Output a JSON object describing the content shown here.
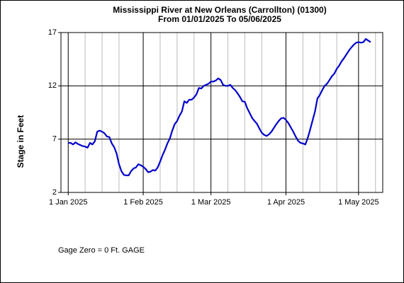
{
  "chart_data": {
    "type": "line",
    "title": "Mississippi River at New Orleans (Carrollton) (01300)",
    "subtitle": "From 01/01/2025 To 05/06/2025",
    "y_label": "Stage in Feet",
    "annotation": "Gage Zero = 0 Ft. GAGE",
    "x": [
      "2025-01-01",
      "2025-01-02",
      "2025-01-03",
      "2025-01-04",
      "2025-01-05",
      "2025-01-06",
      "2025-01-07",
      "2025-01-08",
      "2025-01-09",
      "2025-01-10",
      "2025-01-11",
      "2025-01-12",
      "2025-01-13",
      "2025-01-14",
      "2025-01-15",
      "2025-01-16",
      "2025-01-17",
      "2025-01-18",
      "2025-01-19",
      "2025-01-20",
      "2025-01-21",
      "2025-01-22",
      "2025-01-23",
      "2025-01-24",
      "2025-01-25",
      "2025-01-26",
      "2025-01-27",
      "2025-01-28",
      "2025-01-29",
      "2025-01-30",
      "2025-01-31",
      "2025-02-01",
      "2025-02-02",
      "2025-02-03",
      "2025-02-04",
      "2025-02-05",
      "2025-02-06",
      "2025-02-07",
      "2025-02-08",
      "2025-02-09",
      "2025-02-10",
      "2025-02-11",
      "2025-02-12",
      "2025-02-13",
      "2025-02-14",
      "2025-02-15",
      "2025-02-16",
      "2025-02-17",
      "2025-02-18",
      "2025-02-19",
      "2025-02-20",
      "2025-02-21",
      "2025-02-22",
      "2025-02-23",
      "2025-02-24",
      "2025-02-25",
      "2025-02-26",
      "2025-02-27",
      "2025-02-28",
      "2025-03-01",
      "2025-03-02",
      "2025-03-03",
      "2025-03-04",
      "2025-03-05",
      "2025-03-06",
      "2025-03-07",
      "2025-03-08",
      "2025-03-09",
      "2025-03-10",
      "2025-03-11",
      "2025-03-12",
      "2025-03-13",
      "2025-03-14",
      "2025-03-15",
      "2025-03-16",
      "2025-03-17",
      "2025-03-18",
      "2025-03-19",
      "2025-03-20",
      "2025-03-21",
      "2025-03-22",
      "2025-03-23",
      "2025-03-24",
      "2025-03-25",
      "2025-03-26",
      "2025-03-27",
      "2025-03-28",
      "2025-03-29",
      "2025-03-30",
      "2025-03-31",
      "2025-04-01",
      "2025-04-02",
      "2025-04-03",
      "2025-04-04",
      "2025-04-05",
      "2025-04-06",
      "2025-04-07",
      "2025-04-08",
      "2025-04-09",
      "2025-04-10",
      "2025-04-11",
      "2025-04-12",
      "2025-04-13",
      "2025-04-14",
      "2025-04-15",
      "2025-04-16",
      "2025-04-17",
      "2025-04-18",
      "2025-04-19",
      "2025-04-20",
      "2025-04-21",
      "2025-04-22",
      "2025-04-23",
      "2025-04-24",
      "2025-04-25",
      "2025-04-26",
      "2025-04-27",
      "2025-04-28",
      "2025-04-29",
      "2025-04-30",
      "2025-05-01",
      "2025-05-02",
      "2025-05-03",
      "2025-05-04",
      "2025-05-05",
      "2025-05-06"
    ],
    "series": [
      {
        "color": "#0000cc",
        "values": [
          6.65,
          6.65,
          6.5,
          6.7,
          6.55,
          6.45,
          6.35,
          6.3,
          6.2,
          6.65,
          6.5,
          6.8,
          7.7,
          7.8,
          7.7,
          7.55,
          7.25,
          7.2,
          6.6,
          6.25,
          5.65,
          4.65,
          4.0,
          3.65,
          3.6,
          3.6,
          4.0,
          4.25,
          4.35,
          4.65,
          4.55,
          4.4,
          4.2,
          3.9,
          3.95,
          4.1,
          4.05,
          4.35,
          4.9,
          5.5,
          6.0,
          6.6,
          7.05,
          7.8,
          8.4,
          8.7,
          9.2,
          9.6,
          10.55,
          10.4,
          10.7,
          10.7,
          10.9,
          11.2,
          11.8,
          11.75,
          12.0,
          12.1,
          12.2,
          12.4,
          12.4,
          12.5,
          12.7,
          12.55,
          12.1,
          12.0,
          12.0,
          12.1,
          11.8,
          11.6,
          11.3,
          10.95,
          10.55,
          10.5,
          9.9,
          9.45,
          9.0,
          8.7,
          8.45,
          8.0,
          7.6,
          7.4,
          7.3,
          7.45,
          7.7,
          8.05,
          8.4,
          8.7,
          8.95,
          9.0,
          8.8,
          8.5,
          8.1,
          7.7,
          7.25,
          6.85,
          6.65,
          6.6,
          6.5,
          7.1,
          7.9,
          8.75,
          9.6,
          10.8,
          11.15,
          11.6,
          12.0,
          12.2,
          12.55,
          12.9,
          13.15,
          13.6,
          13.9,
          14.3,
          14.6,
          14.95,
          15.3,
          15.6,
          15.85,
          16.05,
          16.1,
          16.05,
          16.1,
          16.4,
          16.25,
          16.1
        ]
      }
    ],
    "xlim": [
      "2024-12-29",
      "2025-05-11"
    ],
    "xticks": [
      {
        "value": "2025-01-01",
        "label": "1 Jan 2025"
      },
      {
        "value": "2025-02-01",
        "label": "1 Feb 2025"
      },
      {
        "value": "2025-03-01",
        "label": "1 Mar 2025"
      },
      {
        "value": "2025-04-01",
        "label": "1 Apr 2025"
      },
      {
        "value": "2025-05-01",
        "label": "1 May 2025"
      }
    ],
    "xminor_ticks": [
      "2025-01-08",
      "2025-01-15",
      "2025-01-22",
      "2025-02-08",
      "2025-02-15",
      "2025-02-22",
      "2025-03-08",
      "2025-03-15",
      "2025-03-22",
      "2025-04-08",
      "2025-04-15",
      "2025-04-22",
      "2025-05-08"
    ],
    "ylim": [
      2,
      17
    ],
    "yticks": [
      2,
      7,
      12,
      17
    ],
    "grid": true
  }
}
